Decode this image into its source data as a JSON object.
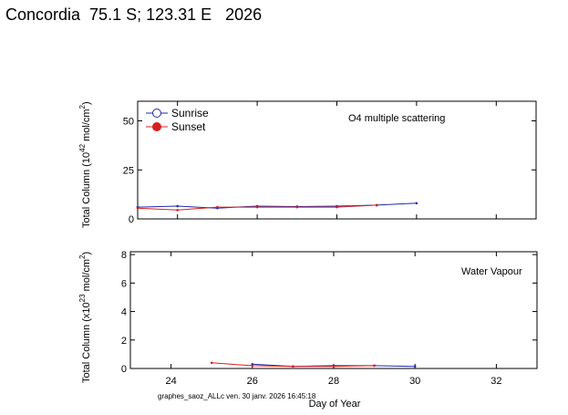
{
  "header": {
    "title": "Concordia  75.1 S; 123.31 E   2026"
  },
  "footer": {
    "text": "graphes_saoz_ALLc ven. 30 janv. 2026 16:45:18"
  },
  "colors": {
    "sunrise": "#1f2aa8",
    "sunset": "#d81f1f"
  },
  "chart_data": [
    {
      "type": "line",
      "annotation": "O4 multiple scattering",
      "ylabel": "Total Column (10^42 mol/cm^2)",
      "ylabel_base": "Total Column (10",
      "ylabel_exp": "42",
      "ylabel_unit": " mol/cm",
      "ylabel_unit_exp": "2",
      "ylabel_close": ")",
      "xlim": [
        23,
        33
      ],
      "ylim": [
        0,
        60
      ],
      "yticks": [
        0,
        25,
        50
      ],
      "legend": {
        "position": "top-left",
        "entries": [
          "Sunrise",
          "Sunset"
        ]
      },
      "series": [
        {
          "name": "Sunrise",
          "x": [
            23,
            24,
            25,
            26,
            27,
            28,
            29,
            30
          ],
          "y": [
            6.0,
            6.5,
            5.5,
            6.5,
            6.3,
            6.5,
            7.0,
            8.0
          ]
        },
        {
          "name": "Sunset",
          "x": [
            23,
            24,
            25,
            26,
            27,
            28,
            29
          ],
          "y": [
            5.5,
            4.5,
            6.0,
            6.0,
            6.0,
            6.0,
            7.0
          ]
        }
      ]
    },
    {
      "type": "line",
      "annotation": "Water Vapour",
      "ylabel": "Total Column (x10^23 mol/cm^2)",
      "ylabel_base": "Total Column (x10",
      "ylabel_exp": "23",
      "ylabel_unit": " mol/cm",
      "ylabel_unit_exp": "2",
      "ylabel_close": ")",
      "xlabel": "Day of Year",
      "xlim": [
        23,
        33
      ],
      "ylim": [
        0,
        8.2
      ],
      "yticks": [
        0,
        2,
        4,
        6,
        8
      ],
      "xticks": [
        24,
        26,
        28,
        30,
        32
      ],
      "series": [
        {
          "name": "Sunrise",
          "x": [
            26,
            27,
            28,
            29,
            30
          ],
          "y": [
            0.3,
            0.15,
            0.2,
            0.2,
            0.15
          ]
        },
        {
          "name": "Sunset",
          "x": [
            25,
            26,
            27,
            28,
            29
          ],
          "y": [
            0.4,
            0.2,
            0.15,
            0.15,
            0.2
          ]
        }
      ]
    }
  ]
}
